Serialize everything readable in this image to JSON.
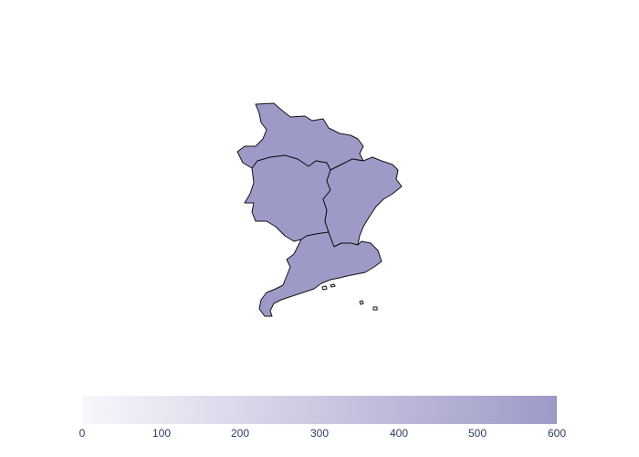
{
  "map": {
    "colorscale": {
      "min_color": "#f8f7fb",
      "max_color": "#9e9ac8"
    },
    "regions": [
      {
        "id": "north",
        "value": 600
      },
      {
        "id": "west",
        "value": 600
      },
      {
        "id": "east",
        "value": 600
      },
      {
        "id": "south",
        "value": 600
      }
    ],
    "colorbar": {
      "range": [
        0,
        600
      ],
      "ticks": [
        "0",
        "100",
        "200",
        "300",
        "400",
        "500",
        "600"
      ]
    }
  }
}
